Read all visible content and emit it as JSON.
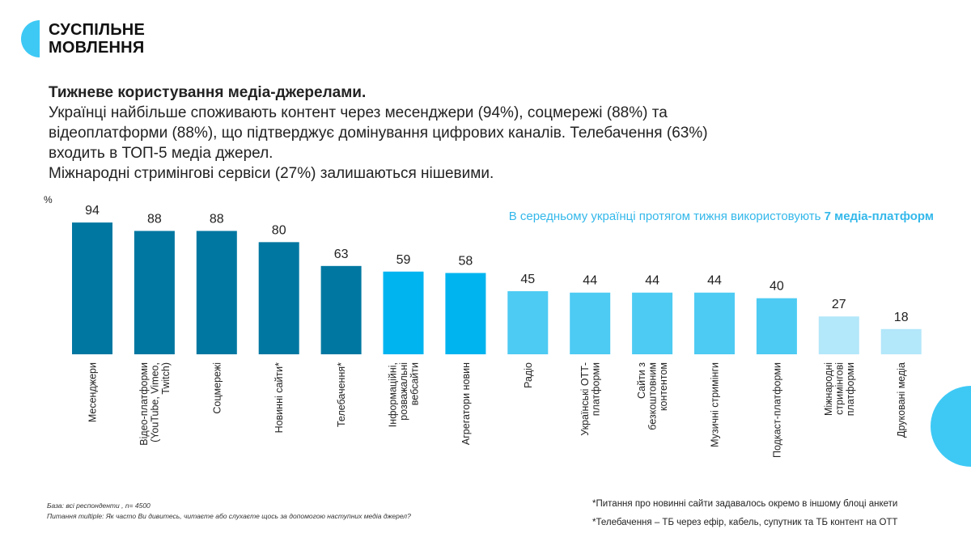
{
  "brand": {
    "line1": "СУСПІЛЬНЕ",
    "line2": "МОВЛЕННЯ"
  },
  "headline": {
    "title": "Тижневе користування медіа-джерелами.",
    "line1": "Українці найбільше споживають контент через месенджери (94%), соцмережі (88%) та",
    "line2": "відеоплатформи (88%), що підтверджує домінування цифрових каналів. Телебачення (63%)",
    "line3": "входить в ТОП-5 медіа джерел.",
    "line4": "Міжнародні стримінгові сервіси (27%) залишаються нішевими."
  },
  "highlight": {
    "text": "В середньому українці протягом тижня використовують ",
    "bold": "7 медіа-платформ"
  },
  "footer": {
    "base": "База: всі респонденти , n= 4500",
    "question": "Питання multiple: Як часто Ви дивитесь, читаєте або слухаєте щось за допомогою наступних медіа джерел?",
    "note1": "*Питання про новинні сайти задавалось окремо в іншому блоці анкети",
    "note2": "*Телебачення  – ТБ через ефір, кабель, супутник  та ТБ контент на ОТТ"
  },
  "colors": {
    "dark": "#0077a1",
    "mid": "#00b4ef",
    "light": "#4dcbf3",
    "pale": "#b3e7fa",
    "accent": "#3ec9f5"
  },
  "chart_data": {
    "type": "bar",
    "unit_label": "%",
    "ylim": [
      0,
      100
    ],
    "categories": [
      [
        "Месенджери"
      ],
      [
        "Відео-платформи",
        "(YouTube, Vimeo,",
        "Twitch)"
      ],
      [
        "Соцмережі"
      ],
      [
        "Новинні сайти*"
      ],
      [
        "Телебачення*"
      ],
      [
        "Інформаційні,",
        "розважальні",
        "вебсайти"
      ],
      [
        "Агрегатори новин"
      ],
      [
        "Радіо"
      ],
      [
        "Українські ОТТ-",
        "платформи"
      ],
      [
        "Сайти з",
        "безкоштовним",
        "контентом"
      ],
      [
        "Музичні стримінги"
      ],
      [
        "Подкаст-платформи"
      ],
      [
        "Міжнародні",
        "стримінгові",
        "платформи"
      ],
      [
        "Друковані медіа"
      ]
    ],
    "values": [
      94,
      88,
      88,
      80,
      63,
      59,
      58,
      45,
      44,
      44,
      44,
      40,
      27,
      18
    ],
    "color_groups": [
      "dark",
      "dark",
      "dark",
      "dark",
      "dark",
      "mid",
      "mid",
      "light",
      "light",
      "light",
      "light",
      "light",
      "pale",
      "pale"
    ]
  }
}
